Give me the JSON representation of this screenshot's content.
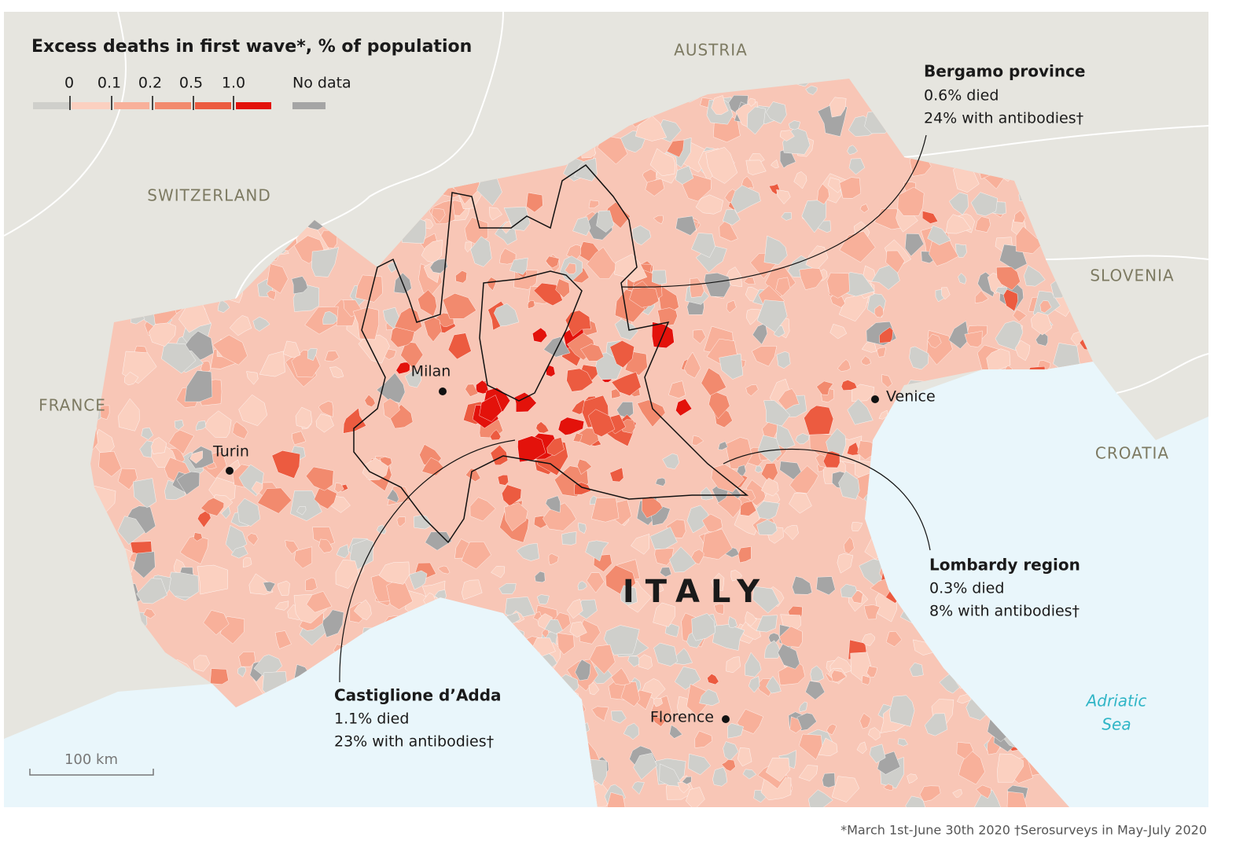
{
  "legend": {
    "title": "Excess deaths in first wave*, % of population",
    "breaks": [
      "0",
      "0.1",
      "0.2",
      "0.5",
      "1.0"
    ],
    "no_data": "No data"
  },
  "countries": [
    "AUSTRIA",
    "SWITZERLAND",
    "FRANCE",
    "SLOVENIA",
    "CROATIA",
    "ITALY"
  ],
  "cities": [
    "Milan",
    "Turin",
    "Venice",
    "Florence"
  ],
  "sea": [
    "Adriatic",
    "Sea"
  ],
  "annotations": [
    {
      "title": "Bergamo province",
      "lines": [
        "0.6% died",
        "24% with antibodies†"
      ]
    },
    {
      "title": "Lombardy region",
      "lines": [
        "0.3% died",
        "8% with antibodies†"
      ]
    },
    {
      "title": "Castiglione d’Adda",
      "lines": [
        "1.1% died",
        "23% with antibodies†"
      ]
    }
  ],
  "scale": "100 km",
  "footnote": "*March 1st-June 30th 2020 †Serosurveys in May-July 2020"
}
